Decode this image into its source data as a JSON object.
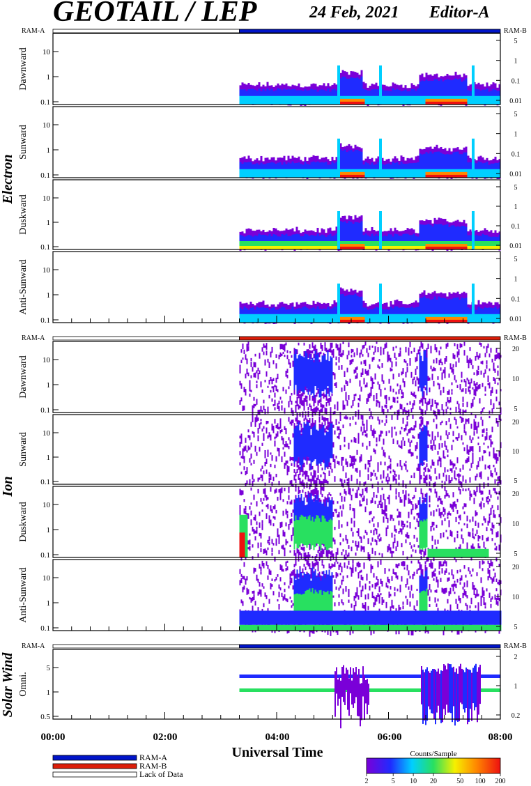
{
  "header": {
    "title": "GEOTAIL / LEP",
    "date": "24 Feb, 2021",
    "editor": "Editor-A"
  },
  "ram_labels": {
    "left": "RAM-A",
    "right": "RAM-B"
  },
  "colors": {
    "ram_a": "#0014c8",
    "ram_b": "#dc1e0a",
    "lack": "#ffffff"
  },
  "legend": {
    "ram_a": "RAM-A",
    "ram_b": "RAM-B",
    "lack": "Lack of Data"
  },
  "colorbar": {
    "title": "Counts/Sample",
    "ticks": [
      "2",
      "5",
      "10",
      "20",
      "50",
      "100",
      "200"
    ],
    "colors": [
      "#7a00d8",
      "#1f2bff",
      "#00cfff",
      "#28e060",
      "#f6f000",
      "#ff8800",
      "#ee1010"
    ]
  },
  "chart_data": {
    "type": "heatmap",
    "xlabel": "Universal Time",
    "x_ticks": [
      "00:00",
      "02:00",
      "04:00",
      "06:00",
      "08:00"
    ],
    "xlim": [
      "00:00",
      "08:00"
    ],
    "data_start": "03:20",
    "groups": [
      {
        "name": "Electron",
        "ram_mode": "RAM-A",
        "panels": [
          {
            "name": "Dawnward",
            "left_ticks": [
              "0.1",
              "1",
              "10"
            ],
            "right_ticks": [
              "0.01",
              "0.1",
              "1",
              "5"
            ]
          },
          {
            "name": "Sunward",
            "left_ticks": [
              "0.1",
              "1",
              "10"
            ],
            "right_ticks": [
              "0.01",
              "0.1",
              "1",
              "5"
            ]
          },
          {
            "name": "Duskward",
            "left_ticks": [
              "0.1",
              "1",
              "10"
            ],
            "right_ticks": [
              "0.01",
              "0.1",
              "1",
              "5"
            ]
          },
          {
            "name": "Anti-Sunward",
            "left_ticks": [
              "0.1",
              "1",
              "10"
            ],
            "right_ticks": [
              "0.01",
              "0.1",
              "1",
              "5"
            ]
          }
        ]
      },
      {
        "name": "Ion",
        "ram_mode": "RAM-B",
        "panels": [
          {
            "name": "Dawnward",
            "left_ticks": [
              "0.1",
              "1",
              "10"
            ],
            "right_ticks": [
              "5",
              "10",
              "20"
            ]
          },
          {
            "name": "Sunward",
            "left_ticks": [
              "0.1",
              "1",
              "10"
            ],
            "right_ticks": [
              "5",
              "10",
              "20"
            ]
          },
          {
            "name": "Duskward",
            "left_ticks": [
              "0.1",
              "1",
              "10"
            ],
            "right_ticks": [
              "5",
              "10",
              "20"
            ]
          },
          {
            "name": "Anti-Sunward",
            "left_ticks": [
              "0.1",
              "1",
              "10"
            ],
            "right_ticks": [
              "5",
              "10",
              "20"
            ]
          }
        ]
      },
      {
        "name": "Solar Wind",
        "ram_mode": "RAM-A",
        "panels": [
          {
            "name": "Omni.",
            "left_ticks": [
              "0.5",
              "1",
              "5"
            ],
            "right_ticks": [
              "0.2",
              "1",
              "2"
            ]
          }
        ]
      }
    ]
  }
}
